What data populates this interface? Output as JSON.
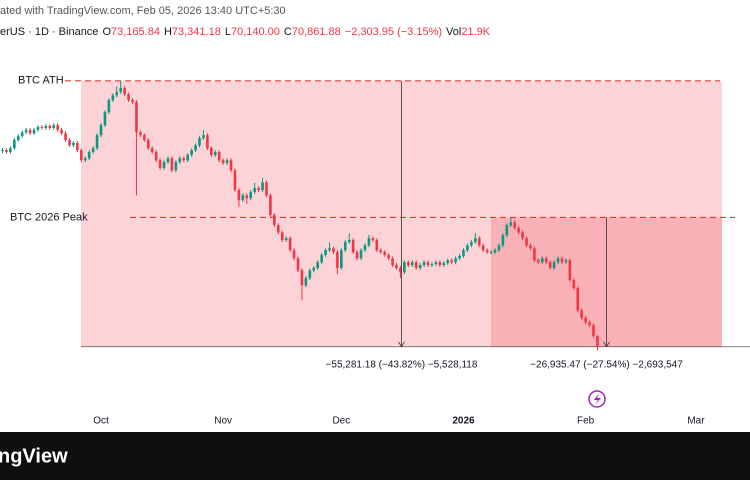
{
  "header": {
    "line1": "ated with TradingView.com, Feb 05, 2026 13:40 UTC+5:30",
    "symbol": "erUS · 1D · Binance",
    "ohlc": [
      {
        "key": "O",
        "value": "73,165.84"
      },
      {
        "key": "H",
        "value": "73,341.18"
      },
      {
        "key": "L",
        "value": "70,140.00"
      },
      {
        "key": "C",
        "value": "70,861.88"
      }
    ],
    "change": "−2,303.95 (−3.15%)",
    "vol_key": "Vol",
    "vol_value": "21.9K"
  },
  "chart_data": {
    "type": "candlestick",
    "ylim": [
      53200,
      143000
    ],
    "xticks": [
      {
        "value": 25,
        "label": "Oct"
      },
      {
        "value": 56,
        "label": "Nov"
      },
      {
        "value": 86,
        "label": "Dec"
      },
      {
        "value": 117,
        "label": "2026"
      },
      {
        "value": 148,
        "label": "Feb"
      },
      {
        "value": 176,
        "label": "Mar"
      }
    ],
    "up_color": "#089981",
    "down_color": "#f23645",
    "levels": [
      {
        "name": "BTC ATH",
        "value": 126198
      },
      {
        "name": "BTC 2026 Peak",
        "value": 97797
      }
    ],
    "range_bottom": 70917,
    "measures": [
      "−55,281.18 (−43.82%) −5,528,118",
      "−26,935.47 (−27.54%) −2,693,547"
    ],
    "open": [
      111600,
      111800,
      111400,
      112200,
      113900,
      114700,
      115500,
      116000,
      115300,
      116000,
      116600,
      116400,
      116800,
      116400,
      117000,
      116000,
      115300,
      113900,
      112800,
      113300,
      111800,
      109700,
      110100,
      111400,
      112200,
      114900,
      117000,
      119700,
      122200,
      123200,
      123900,
      124700,
      123400,
      122200,
      121800,
      115500,
      114900,
      113900,
      112200,
      111400,
      109700,
      108100,
      109300,
      110100,
      107600,
      109300,
      110100,
      109700,
      110800,
      111800,
      112800,
      114300,
      114900,
      112200,
      110800,
      111400,
      109700,
      109100,
      109700,
      107600,
      103500,
      101400,
      102400,
      101800,
      103100,
      103900,
      103500,
      105100,
      102400,
      98300,
      96200,
      94700,
      93100,
      93500,
      91000,
      89300,
      86800,
      83700,
      85200,
      86800,
      87300,
      88500,
      90000,
      91000,
      91400,
      90600,
      87300,
      91000,
      92700,
      93100,
      90600,
      89300,
      91000,
      92000,
      93500,
      93100,
      91000,
      90600,
      90000,
      89300,
      87900,
      87300,
      86400,
      88500,
      87900,
      88500,
      87300,
      87900,
      88500,
      87900,
      88100,
      88500,
      87900,
      88300,
      88900,
      88500,
      89300,
      89800,
      91000,
      92000,
      92700,
      93500,
      92000,
      91000,
      90600,
      90600,
      91000,
      92000,
      94100,
      96200,
      96800,
      95600,
      94700,
      93500,
      92000,
      91400,
      88900,
      88500,
      89300,
      88500,
      87300,
      88500,
      89300,
      88500,
      88900,
      84800,
      83100,
      78500,
      76900,
      76000,
      75400,
      73165.84
    ],
    "high": [
      112200,
      112200,
      112600,
      114300,
      115100,
      115900,
      116400,
      116400,
      116400,
      117000,
      117000,
      117200,
      117200,
      117400,
      117400,
      116400,
      115700,
      114300,
      113700,
      113700,
      112200,
      110500,
      111800,
      112600,
      115300,
      117400,
      120100,
      122600,
      123600,
      125000,
      126198,
      125100,
      123800,
      122600,
      122200,
      115900,
      115300,
      114300,
      112600,
      111800,
      110100,
      109700,
      110500,
      110500,
      109700,
      110500,
      110500,
      111200,
      112200,
      113200,
      114700,
      116000,
      115300,
      112600,
      111800,
      111800,
      110100,
      110100,
      110100,
      108000,
      103900,
      102800,
      102800,
      103500,
      105000,
      104300,
      106000,
      105500,
      102800,
      98700,
      96600,
      95100,
      93900,
      93900,
      91400,
      89700,
      87200,
      85600,
      87200,
      87700,
      88900,
      90400,
      91400,
      92600,
      91800,
      91000,
      91400,
      93100,
      94500,
      93500,
      91000,
      91400,
      92400,
      94200,
      93900,
      93500,
      91400,
      91000,
      90400,
      89700,
      88300,
      87700,
      88900,
      88900,
      88900,
      88900,
      88300,
      88900,
      88900,
      88500,
      88900,
      88900,
      88700,
      89300,
      89300,
      89700,
      90200,
      91400,
      92400,
      93100,
      94600,
      93900,
      92400,
      91400,
      91000,
      91400,
      92400,
      94500,
      96600,
      97797,
      97200,
      96000,
      95100,
      93900,
      92400,
      91800,
      89300,
      89700,
      89700,
      88900,
      88900,
      89700,
      89700,
      89300,
      89300,
      85200,
      83500,
      78900,
      77300,
      76400,
      75800,
      73341.18
    ],
    "low": [
      111200,
      111000,
      111000,
      111800,
      113500,
      114300,
      115100,
      114900,
      114900,
      115600,
      116000,
      116000,
      116000,
      116000,
      115600,
      114900,
      113500,
      112400,
      112400,
      111400,
      109300,
      109300,
      109700,
      111000,
      111800,
      114500,
      116600,
      119300,
      121800,
      122800,
      123500,
      123000,
      121800,
      121400,
      102400,
      114500,
      113500,
      111800,
      111000,
      109300,
      107700,
      107700,
      108900,
      107200,
      107200,
      108900,
      109300,
      109300,
      110400,
      111400,
      112400,
      113900,
      111800,
      110400,
      110400,
      109300,
      108700,
      108700,
      107200,
      103100,
      100000,
      101000,
      100600,
      101400,
      102700,
      103100,
      103100,
      102000,
      97900,
      95800,
      94300,
      92700,
      92700,
      90600,
      88900,
      86400,
      80600,
      83300,
      84800,
      86400,
      86900,
      88100,
      89600,
      90600,
      90200,
      86000,
      86900,
      90600,
      92300,
      90200,
      88900,
      88900,
      90600,
      91600,
      92700,
      90600,
      90200,
      89600,
      88900,
      87500,
      86900,
      85200,
      86000,
      87500,
      87500,
      86900,
      86900,
      87500,
      87500,
      87500,
      87700,
      87500,
      87500,
      87900,
      88100,
      88100,
      88900,
      89400,
      90600,
      91600,
      92300,
      91600,
      90600,
      90200,
      90200,
      90200,
      90600,
      91600,
      93700,
      95800,
      95200,
      94300,
      93100,
      91600,
      91000,
      88500,
      88100,
      88100,
      88100,
      86900,
      86900,
      88100,
      88100,
      88100,
      84400,
      82700,
      78100,
      76500,
      75600,
      75000,
      72800,
      70140
    ],
    "close": [
      111800,
      111400,
      112200,
      113900,
      114700,
      115500,
      116000,
      115300,
      116000,
      116600,
      116400,
      116800,
      116400,
      117000,
      116000,
      115300,
      113900,
      112800,
      113300,
      111800,
      109700,
      110100,
      111400,
      112200,
      114900,
      117000,
      119700,
      122200,
      123200,
      123900,
      124700,
      123400,
      122200,
      121800,
      115500,
      114900,
      113900,
      112200,
      111400,
      109700,
      108100,
      109300,
      110100,
      107600,
      109300,
      110100,
      109700,
      110800,
      111800,
      112800,
      114300,
      114900,
      112200,
      110800,
      111400,
      109700,
      109100,
      109700,
      107600,
      103500,
      101400,
      102400,
      101800,
      103100,
      103900,
      103500,
      105100,
      102400,
      98300,
      96200,
      94700,
      93100,
      93500,
      91000,
      89300,
      86800,
      83700,
      85200,
      86800,
      87300,
      88500,
      90000,
      91000,
      91400,
      90600,
      87300,
      91000,
      92700,
      93100,
      90600,
      89300,
      91000,
      92000,
      93500,
      93100,
      91000,
      90600,
      90000,
      89300,
      87900,
      87300,
      86400,
      88500,
      87900,
      88500,
      87300,
      87900,
      88500,
      87900,
      88100,
      88500,
      87900,
      88300,
      88900,
      88500,
      89300,
      89800,
      91000,
      92000,
      92700,
      93500,
      92000,
      91000,
      90600,
      90600,
      91000,
      92000,
      94100,
      96200,
      96800,
      95600,
      94700,
      93500,
      92000,
      91400,
      88900,
      88500,
      89300,
      88500,
      87300,
      88500,
      89300,
      88500,
      88900,
      84800,
      83100,
      78500,
      76900,
      76000,
      75400,
      73165.84,
      70861.88
    ]
  },
  "footer": {
    "logo": "ngView"
  }
}
